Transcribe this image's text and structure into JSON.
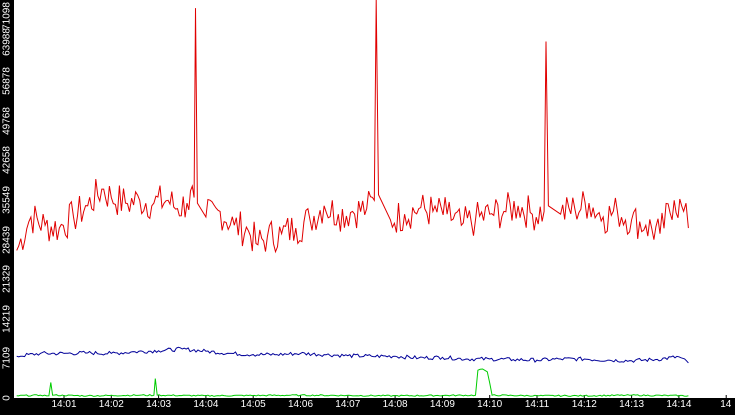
{
  "chart_data": {
    "type": "line",
    "y_ticks": [
      "0",
      "7109",
      "14219",
      "21329",
      "28439",
      "35549",
      "42658",
      "49768",
      "56878",
      "63988",
      "71098"
    ],
    "ylim": [
      0,
      71098
    ],
    "x_ticks": [
      "14:01",
      "14:02",
      "14:03",
      "14:04",
      "14:05",
      "14:06",
      "14:07",
      "14:08",
      "14:09",
      "14:10",
      "14:11",
      "14:12",
      "14:13",
      "14:14",
      "14"
    ],
    "xlim_minutes": [
      0.0,
      14.2
    ],
    "grid": false,
    "series": [
      {
        "color": "#e00000",
        "points": [
          [
            0.0,
            26500
          ],
          [
            0.3,
            32500
          ],
          [
            0.6,
            31000
          ],
          [
            0.9,
            30500
          ],
          [
            1.2,
            32500
          ],
          [
            1.5,
            34500
          ],
          [
            1.8,
            37500
          ],
          [
            2.0,
            36000
          ],
          [
            2.3,
            35000
          ],
          [
            2.6,
            35500
          ],
          [
            2.9,
            35000
          ],
          [
            3.2,
            35500
          ],
          [
            3.4,
            34000
          ],
          [
            3.6,
            35000
          ],
          [
            3.75,
            36000
          ],
          [
            3.78,
            70000
          ],
          [
            3.82,
            35000
          ],
          [
            4.0,
            32500
          ],
          [
            4.3,
            33500
          ],
          [
            4.6,
            31000
          ],
          [
            4.9,
            30000
          ],
          [
            5.1,
            27500
          ],
          [
            5.3,
            29000
          ],
          [
            5.6,
            29500
          ],
          [
            5.9,
            30500
          ],
          [
            6.2,
            32000
          ],
          [
            6.5,
            34500
          ],
          [
            6.8,
            33000
          ],
          [
            7.1,
            33500
          ],
          [
            7.4,
            34000
          ],
          [
            7.56,
            35500
          ],
          [
            7.6,
            72500
          ],
          [
            7.65,
            36500
          ],
          [
            7.9,
            32000
          ],
          [
            8.2,
            33000
          ],
          [
            8.5,
            34000
          ],
          [
            8.8,
            33500
          ],
          [
            9.1,
            33000
          ],
          [
            9.4,
            31000
          ],
          [
            9.7,
            32000
          ],
          [
            10.0,
            33000
          ],
          [
            10.3,
            33500
          ],
          [
            10.6,
            34500
          ],
          [
            10.9,
            33000
          ],
          [
            11.15,
            33500
          ],
          [
            11.19,
            64000
          ],
          [
            11.24,
            34500
          ],
          [
            11.5,
            33000
          ],
          [
            11.8,
            34000
          ],
          [
            12.1,
            35000
          ],
          [
            12.4,
            32500
          ],
          [
            12.7,
            33500
          ],
          [
            13.0,
            32000
          ],
          [
            13.3,
            31000
          ],
          [
            13.6,
            29500
          ],
          [
            13.9,
            35500
          ],
          [
            14.1,
            33500
          ],
          [
            14.2,
            30500
          ]
        ]
      },
      {
        "color": "#000099",
        "points": [
          [
            0.0,
            7500
          ],
          [
            0.5,
            8000
          ],
          [
            1.0,
            8000
          ],
          [
            1.5,
            8100
          ],
          [
            2.0,
            8000
          ],
          [
            2.5,
            8300
          ],
          [
            3.0,
            8500
          ],
          [
            3.5,
            8800
          ],
          [
            4.0,
            8400
          ],
          [
            4.5,
            8000
          ],
          [
            5.0,
            7800
          ],
          [
            5.5,
            7800
          ],
          [
            6.0,
            8000
          ],
          [
            6.5,
            7800
          ],
          [
            7.0,
            7600
          ],
          [
            7.5,
            7500
          ],
          [
            8.0,
            7500
          ],
          [
            8.5,
            7200
          ],
          [
            9.0,
            7300
          ],
          [
            9.5,
            7000
          ],
          [
            10.0,
            7000
          ],
          [
            10.5,
            6900
          ],
          [
            11.0,
            6800
          ],
          [
            11.5,
            7000
          ],
          [
            12.0,
            7000
          ],
          [
            12.5,
            6800
          ],
          [
            13.0,
            6700
          ],
          [
            13.5,
            6900
          ],
          [
            14.0,
            7400
          ],
          [
            14.2,
            6300
          ]
        ]
      },
      {
        "color": "#00cc00",
        "points": [
          [
            0.0,
            400
          ],
          [
            0.5,
            500
          ],
          [
            0.68,
            400
          ],
          [
            0.72,
            2800
          ],
          [
            0.76,
            500
          ],
          [
            1.5,
            400
          ],
          [
            2.6,
            500
          ],
          [
            2.9,
            500
          ],
          [
            2.93,
            3500
          ],
          [
            2.97,
            500
          ],
          [
            4.0,
            400
          ],
          [
            6.0,
            500
          ],
          [
            8.0,
            400
          ],
          [
            9.7,
            500
          ],
          [
            9.75,
            5000
          ],
          [
            9.85,
            5200
          ],
          [
            9.95,
            4700
          ],
          [
            10.05,
            500
          ],
          [
            11.0,
            400
          ],
          [
            12.0,
            400
          ],
          [
            13.0,
            500
          ],
          [
            14.2,
            400
          ]
        ]
      }
    ]
  }
}
